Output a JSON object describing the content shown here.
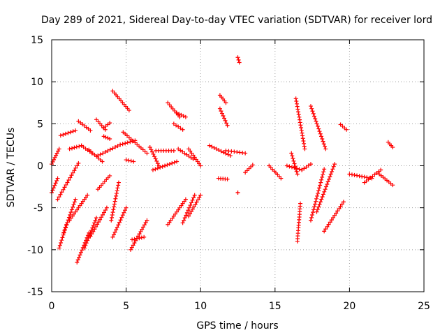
{
  "chart_data": {
    "type": "scatter",
    "title": "Day 289 of 2021, Sidereal Day-to-day VTEC variation (SDTVAR) for receiver lord",
    "xlabel": "GPS time / hours",
    "ylabel": "SDTVAR / TECUs",
    "xlim": [
      0,
      25
    ],
    "ylim": [
      -15,
      15
    ],
    "x_ticks": [
      "0",
      "5",
      "10",
      "15",
      "20",
      "25"
    ],
    "y_ticks": [
      "15",
      "10",
      "5",
      "0",
      "-5",
      "-10",
      "-15"
    ],
    "grid": true,
    "marker": "plus",
    "series_color": "#ff0000",
    "series": [
      {
        "name": "trace-1",
        "x": [
          0.0,
          0.4
        ],
        "y": [
          -3.2,
          -1.5
        ]
      },
      {
        "name": "trace-2",
        "x": [
          0.0,
          0.5
        ],
        "y": [
          0.2,
          2.0
        ]
      },
      {
        "name": "trace-3",
        "x": [
          0.6,
          1.6
        ],
        "y": [
          3.6,
          4.2
        ]
      },
      {
        "name": "trace-4",
        "x": [
          0.4,
          1.8
        ],
        "y": [
          -4.0,
          0.3
        ]
      },
      {
        "name": "trace-5",
        "x": [
          0.5,
          1.0
        ],
        "y": [
          -9.8,
          -7.0
        ]
      },
      {
        "name": "trace-6",
        "x": [
          0.8,
          1.6
        ],
        "y": [
          -8.0,
          -4.0
        ]
      },
      {
        "name": "trace-7",
        "x": [
          1.2,
          2.4
        ],
        "y": [
          -6.5,
          -3.5
        ]
      },
      {
        "name": "trace-8",
        "x": [
          1.2,
          2.0
        ],
        "y": [
          2.0,
          2.4
        ]
      },
      {
        "name": "trace-9",
        "x": [
          2.0,
          2.7
        ],
        "y": [
          2.4,
          1.5
        ]
      },
      {
        "name": "trace-10",
        "x": [
          1.8,
          2.6
        ],
        "y": [
          5.3,
          4.2
        ]
      },
      {
        "name": "trace-11",
        "x": [
          1.7,
          2.5
        ],
        "y": [
          -11.5,
          -8.0
        ]
      },
      {
        "name": "trace-12",
        "x": [
          2.2,
          3.0
        ],
        "y": [
          -9.8,
          -6.2
        ]
      },
      {
        "name": "trace-13",
        "x": [
          2.6,
          3.7
        ],
        "y": [
          -8.4,
          -5.0
        ]
      },
      {
        "name": "trace-14",
        "x": [
          2.5,
          3.4
        ],
        "y": [
          1.9,
          0.5
        ]
      },
      {
        "name": "trace-15",
        "x": [
          3.0,
          3.6
        ],
        "y": [
          5.5,
          4.3
        ]
      },
      {
        "name": "trace-16",
        "x": [
          3.5,
          3.9
        ],
        "y": [
          4.5,
          5.1
        ]
      },
      {
        "name": "trace-17",
        "x": [
          3.5,
          3.9
        ],
        "y": [
          3.5,
          3.2
        ]
      },
      {
        "name": "trace-18",
        "x": [
          3.1,
          3.9
        ],
        "y": [
          -2.8,
          -1.2
        ]
      },
      {
        "name": "trace-19",
        "x": [
          3.1,
          4.6
        ],
        "y": [
          1.2,
          2.5
        ]
      },
      {
        "name": "trace-20",
        "x": [
          4.0,
          4.5
        ],
        "y": [
          -6.5,
          -2.0
        ]
      },
      {
        "name": "trace-21",
        "x": [
          4.1,
          5.2
        ],
        "y": [
          8.9,
          6.6
        ]
      },
      {
        "name": "trace-22",
        "x": [
          4.1,
          5.0
        ],
        "y": [
          -8.5,
          -5.0
        ]
      },
      {
        "name": "trace-23",
        "x": [
          4.6,
          5.6
        ],
        "y": [
          2.5,
          3.0
        ]
      },
      {
        "name": "trace-24",
        "x": [
          4.8,
          6.4
        ],
        "y": [
          4.0,
          1.5
        ]
      },
      {
        "name": "trace-25",
        "x": [
          5.0,
          5.5
        ],
        "y": [
          0.7,
          0.5
        ]
      },
      {
        "name": "trace-26",
        "x": [
          5.3,
          6.4
        ],
        "y": [
          -10.0,
          -6.5
        ]
      },
      {
        "name": "trace-27",
        "x": [
          5.4,
          6.2
        ],
        "y": [
          -8.8,
          -8.5
        ]
      },
      {
        "name": "trace-28",
        "x": [
          6.6,
          7.2
        ],
        "y": [
          2.2,
          0.0
        ]
      },
      {
        "name": "trace-29",
        "x": [
          6.8,
          7.6
        ],
        "y": [
          -0.5,
          0.0
        ]
      },
      {
        "name": "trace-30",
        "x": [
          7.0,
          8.2
        ],
        "y": [
          1.8,
          1.8
        ]
      },
      {
        "name": "trace-31",
        "x": [
          7.6,
          8.4
        ],
        "y": [
          0.0,
          0.5
        ]
      },
      {
        "name": "trace-32",
        "x": [
          7.8,
          8.6
        ],
        "y": [
          7.5,
          5.8
        ]
      },
      {
        "name": "trace-33",
        "x": [
          7.8,
          9.0
        ],
        "y": [
          -7.0,
          -4.0
        ]
      },
      {
        "name": "trace-34",
        "x": [
          8.4,
          9.0
        ],
        "y": [
          6.3,
          5.8
        ]
      },
      {
        "name": "trace-35",
        "x": [
          8.2,
          8.8
        ],
        "y": [
          5.0,
          4.3
        ]
      },
      {
        "name": "trace-36",
        "x": [
          8.5,
          9.5
        ],
        "y": [
          2.0,
          0.8
        ]
      },
      {
        "name": "trace-37",
        "x": [
          8.8,
          9.6
        ],
        "y": [
          -6.8,
          -3.5
        ]
      },
      {
        "name": "trace-38",
        "x": [
          9.2,
          10.0
        ],
        "y": [
          -6.0,
          -3.5
        ]
      },
      {
        "name": "trace-39",
        "x": [
          9.2,
          10.0
        ],
        "y": [
          2.0,
          0.0
        ]
      },
      {
        "name": "trace-40",
        "x": [
          10.6,
          12.0
        ],
        "y": [
          2.4,
          1.2
        ]
      },
      {
        "name": "trace-41",
        "x": [
          11.3,
          11.7
        ],
        "y": [
          8.4,
          7.5
        ]
      },
      {
        "name": "trace-42",
        "x": [
          11.3,
          11.8
        ],
        "y": [
          6.8,
          4.8
        ]
      },
      {
        "name": "trace-43",
        "x": [
          11.2,
          11.8
        ],
        "y": [
          -1.5,
          -1.6
        ]
      },
      {
        "name": "trace-44",
        "x": [
          11.7,
          13.0
        ],
        "y": [
          1.8,
          1.5
        ]
      },
      {
        "name": "trace-45",
        "x": [
          12.5,
          12.6
        ],
        "y": [
          12.9,
          12.3
        ]
      },
      {
        "name": "trace-46",
        "x": [
          12.5,
          12.5
        ],
        "y": [
          -3.2,
          -3.2
        ]
      },
      {
        "name": "trace-47",
        "x": [
          13.0,
          13.5
        ],
        "y": [
          -0.8,
          0.1
        ]
      },
      {
        "name": "trace-48",
        "x": [
          14.6,
          15.4
        ],
        "y": [
          0.0,
          -1.5
        ]
      },
      {
        "name": "trace-49",
        "x": [
          15.8,
          16.8
        ],
        "y": [
          0.0,
          -0.5
        ]
      },
      {
        "name": "trace-50",
        "x": [
          16.1,
          16.5
        ],
        "y": [
          1.5,
          -1.0
        ]
      },
      {
        "name": "trace-51",
        "x": [
          16.8,
          17.4
        ],
        "y": [
          -0.5,
          0.2
        ]
      },
      {
        "name": "trace-52",
        "x": [
          16.4,
          17.0
        ],
        "y": [
          8.0,
          2.0
        ]
      },
      {
        "name": "trace-53",
        "x": [
          16.5,
          16.7
        ],
        "y": [
          -9.0,
          -4.5
        ]
      },
      {
        "name": "trace-54",
        "x": [
          17.4,
          18.4
        ],
        "y": [
          7.1,
          2.0
        ]
      },
      {
        "name": "trace-55",
        "x": [
          17.4,
          18.3
        ],
        "y": [
          -6.5,
          -0.4
        ]
      },
      {
        "name": "trace-56",
        "x": [
          17.8,
          19.0
        ],
        "y": [
          -5.5,
          0.2
        ]
      },
      {
        "name": "trace-57",
        "x": [
          18.3,
          19.6
        ],
        "y": [
          -7.8,
          -4.3
        ]
      },
      {
        "name": "trace-58",
        "x": [
          19.4,
          19.8
        ],
        "y": [
          4.9,
          4.3
        ]
      },
      {
        "name": "trace-59",
        "x": [
          20.0,
          21.5
        ],
        "y": [
          -1.0,
          -1.5
        ]
      },
      {
        "name": "trace-60",
        "x": [
          21.0,
          22.1
        ],
        "y": [
          -2.0,
          -0.5
        ]
      },
      {
        "name": "trace-61",
        "x": [
          22.0,
          22.9
        ],
        "y": [
          -1.0,
          -2.3
        ]
      },
      {
        "name": "trace-62",
        "x": [
          22.6,
          22.9
        ],
        "y": [
          2.8,
          2.2
        ]
      }
    ]
  }
}
